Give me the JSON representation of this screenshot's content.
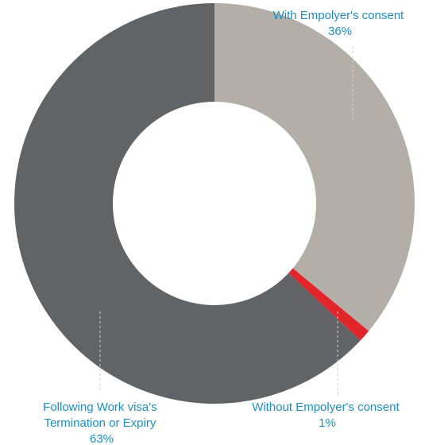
{
  "chart_data": {
    "type": "pie",
    "style": "donut",
    "slices": [
      {
        "label_lines": [
          "With Empolyer's consent"
        ],
        "value": 36,
        "value_label": "36%",
        "color": "#b3afa8"
      },
      {
        "label_lines": [
          "Without Empolyer's consent"
        ],
        "value": 1,
        "value_label": "1%",
        "color": "#e0262b"
      },
      {
        "label_lines": [
          "Following Work visa's",
          "Termination or Expiry"
        ],
        "value": 63,
        "value_label": "63%",
        "color": "#626366"
      }
    ],
    "legend": "none",
    "label_color": "#1e8fc1"
  }
}
